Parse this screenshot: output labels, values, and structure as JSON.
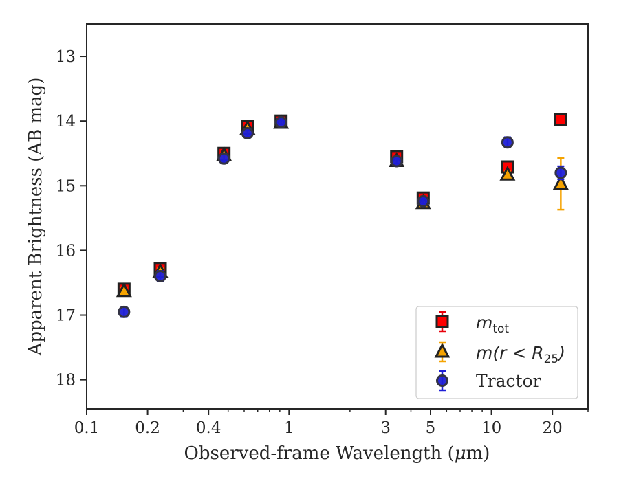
{
  "chart_data": {
    "type": "scatter",
    "title": "",
    "xlabel": "Observed-frame Wavelength (μm)",
    "ylabel": "Apparent Brightness (AB mag)",
    "xscale": "log",
    "xlim": [
      0.1,
      30
    ],
    "ylim": [
      18.45,
      12.5
    ],
    "y_inverted": true,
    "xticks": [
      0.1,
      0.2,
      0.4,
      1,
      3,
      5,
      10,
      20
    ],
    "xtick_labels": [
      "0.1",
      "0.2",
      "0.4",
      "1",
      "3",
      "5",
      "10",
      "20"
    ],
    "yticks": [
      13,
      14,
      15,
      16,
      17,
      18
    ],
    "ytick_labels": [
      "13",
      "14",
      "15",
      "16",
      "17",
      "18"
    ],
    "grid": false,
    "legend_position": "lower-right",
    "series": [
      {
        "name": "m_tot",
        "legend_main": "m",
        "legend_sub": "tot",
        "marker": "square",
        "color": "#ff0000",
        "ecolor": "#e8000b",
        "x": [
          0.153,
          0.231,
          0.477,
          0.623,
          0.913,
          3.4,
          4.6,
          12.0,
          22.0
        ],
        "y": [
          16.6,
          16.28,
          14.5,
          14.08,
          14.0,
          14.55,
          15.19,
          14.71,
          13.98
        ],
        "yerr": [
          0.06,
          0.05,
          0.03,
          0.03,
          0.03,
          0.03,
          0.03,
          0.04,
          0.05
        ]
      },
      {
        "name": "m(r < R25)",
        "legend_main": "m(r < R",
        "legend_sub": "25",
        "legend_tail": ")",
        "marker": "triangle",
        "color": "#f5a300",
        "ecolor": "#f5a300",
        "x": [
          0.153,
          0.231,
          0.477,
          0.623,
          0.913,
          3.4,
          4.6,
          12.0,
          22.0
        ],
        "y": [
          16.63,
          16.33,
          14.53,
          14.12,
          14.03,
          14.62,
          15.27,
          14.83,
          14.97
        ],
        "yerr": [
          0.06,
          0.05,
          0.03,
          0.03,
          0.03,
          0.03,
          0.03,
          0.05,
          0.4
        ]
      },
      {
        "name": "Tractor",
        "marker": "circle",
        "color": "#1f1fd6",
        "ecolor": "#1f1fd6",
        "x": [
          0.153,
          0.231,
          0.477,
          0.623,
          0.913,
          3.4,
          4.6,
          12.0,
          22.0
        ],
        "y": [
          16.95,
          16.4,
          14.58,
          14.19,
          14.02,
          14.62,
          15.24,
          14.33,
          14.8
        ],
        "yerr": [
          0.08,
          0.08,
          0.06,
          0.05,
          0.03,
          0.04,
          0.04,
          0.08,
          0.1
        ]
      }
    ]
  }
}
